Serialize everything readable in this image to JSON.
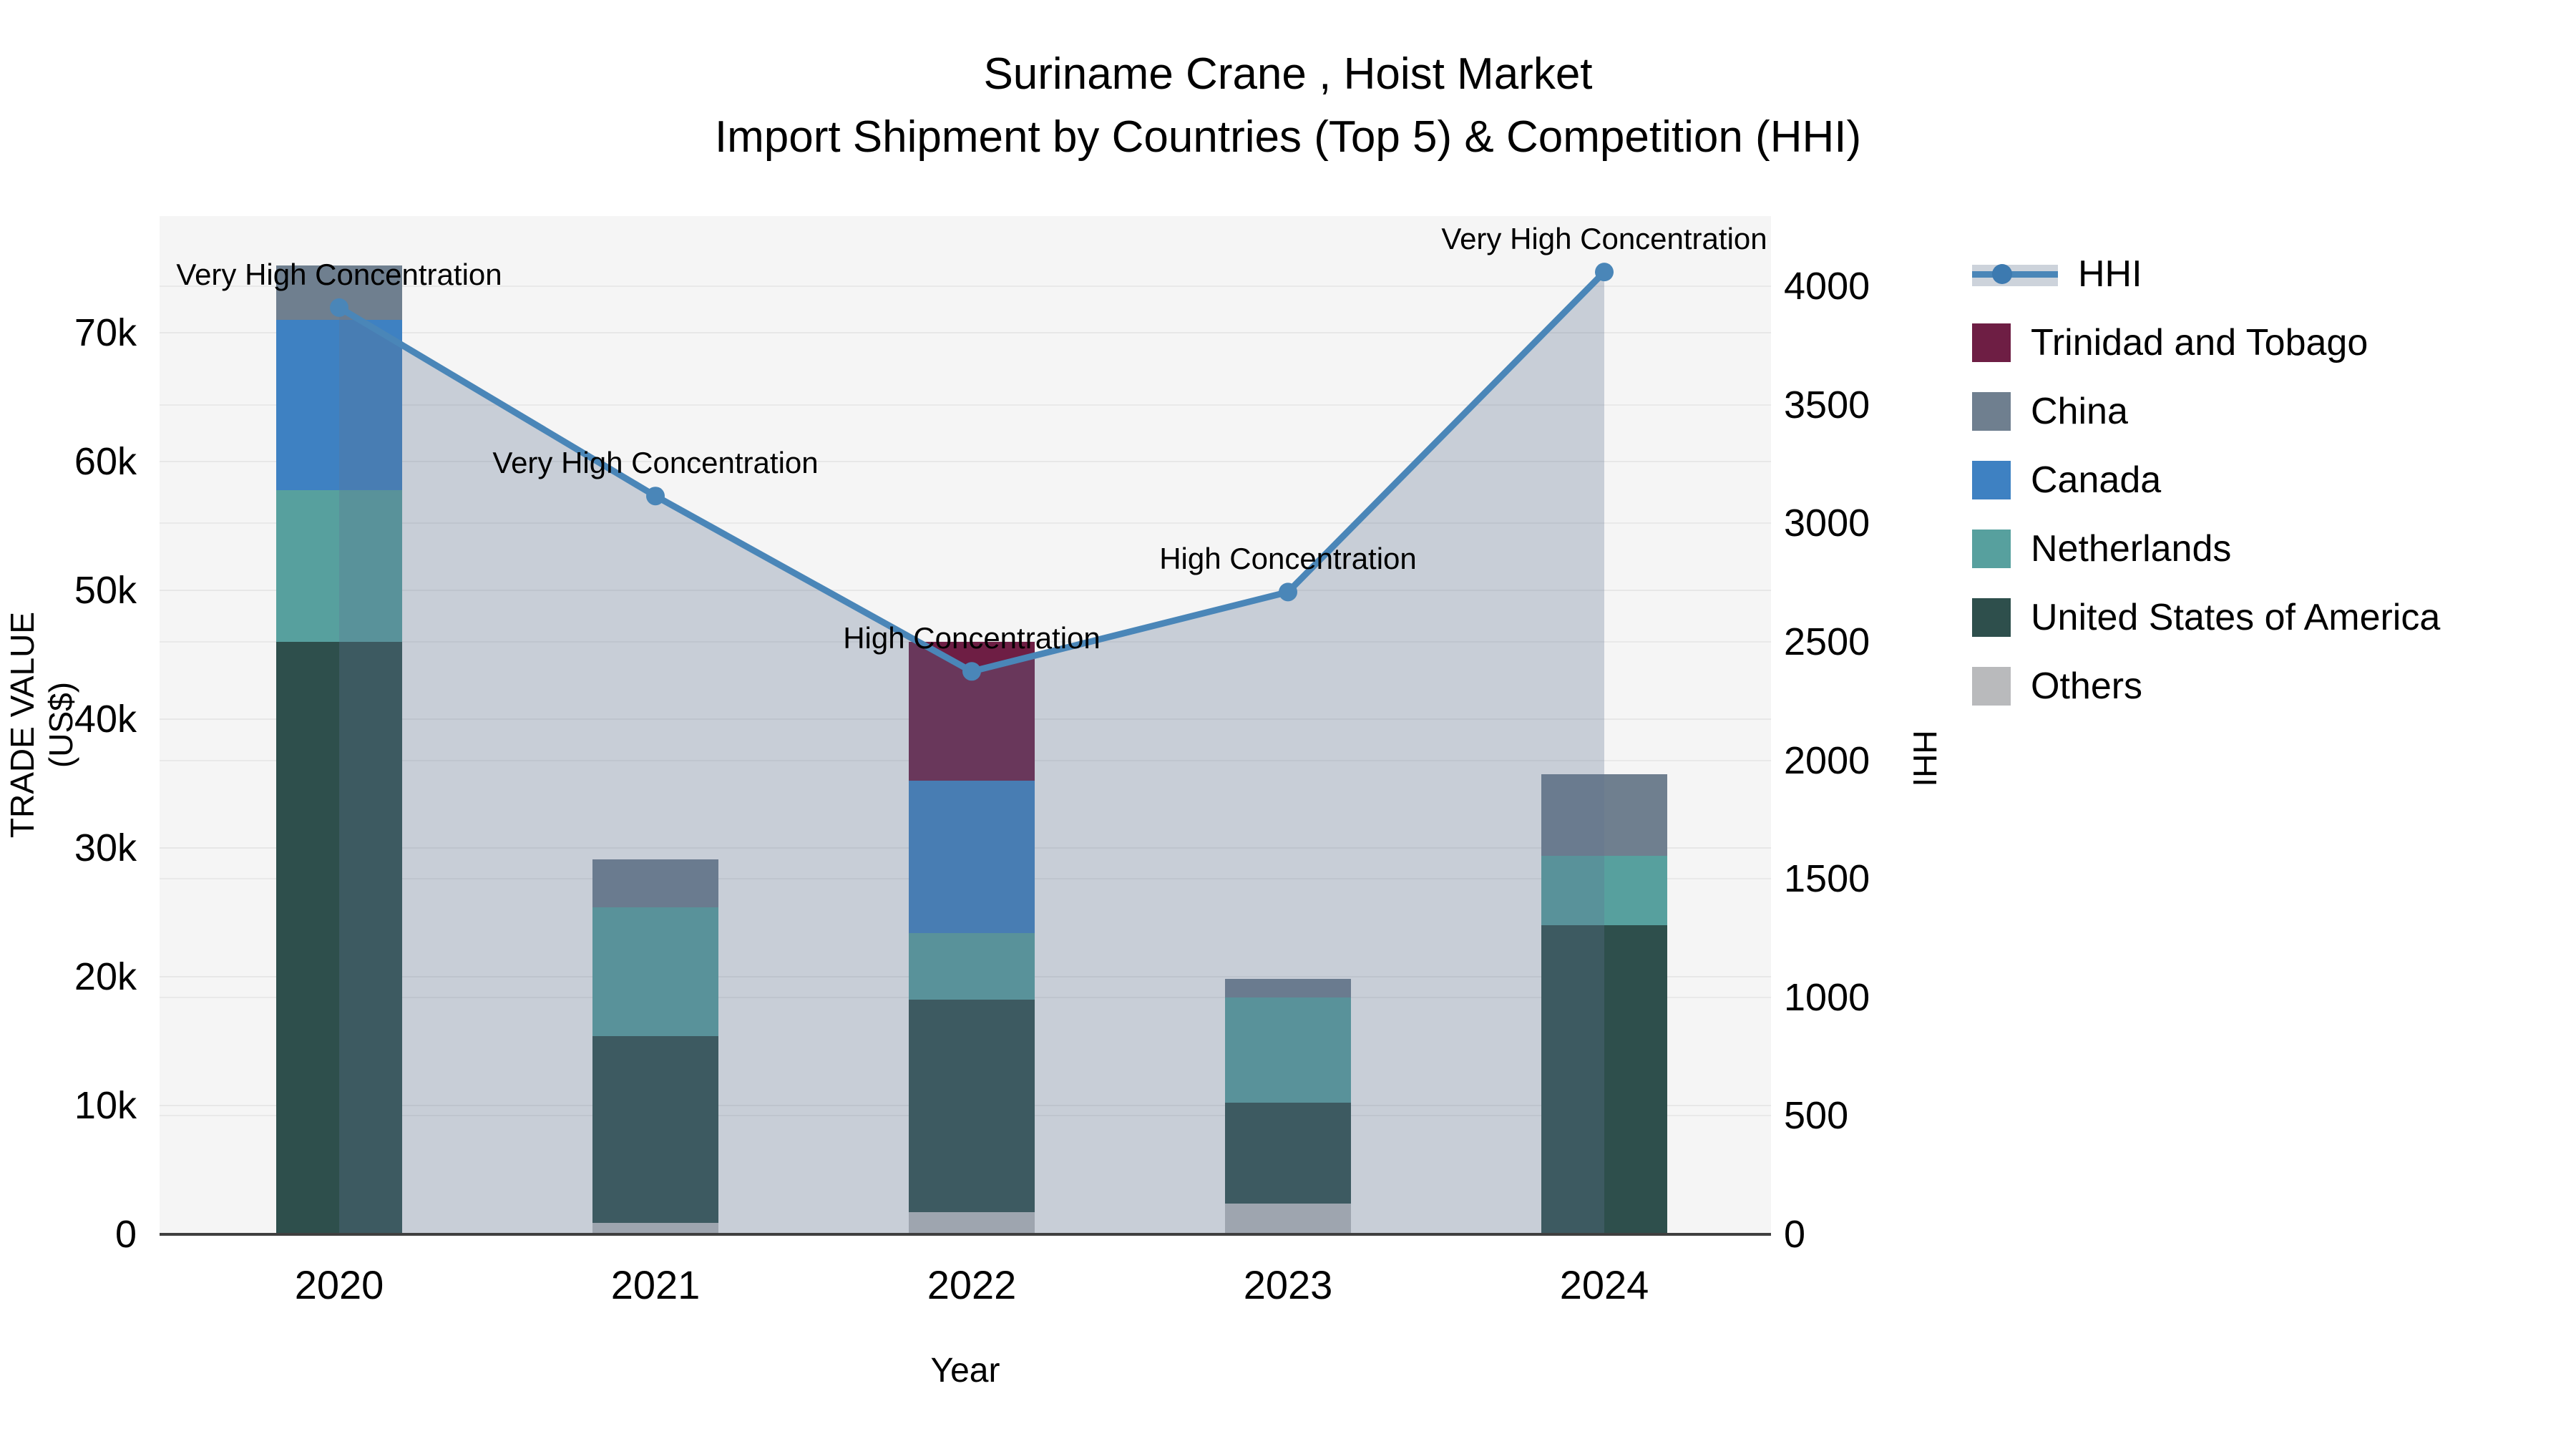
{
  "title": {
    "line1": "Suriname Crane , Hoist Market",
    "line2": "Import Shipment by Countries (Top 5) & Competition (HHI)"
  },
  "axes": {
    "left": {
      "title": "TRADE VALUE (US$)",
      "ticks": [
        {
          "label": "0",
          "value": 0
        },
        {
          "label": "10k",
          "value": 10000
        },
        {
          "label": "20k",
          "value": 20000
        },
        {
          "label": "30k",
          "value": 30000
        },
        {
          "label": "40k",
          "value": 40000
        },
        {
          "label": "50k",
          "value": 50000
        },
        {
          "label": "60k",
          "value": 60000
        },
        {
          "label": "70k",
          "value": 70000
        }
      ]
    },
    "right": {
      "title": "HHI",
      "ticks": [
        {
          "label": "0",
          "value": 0
        },
        {
          "label": "500",
          "value": 500
        },
        {
          "label": "1000",
          "value": 1000
        },
        {
          "label": "1500",
          "value": 1500
        },
        {
          "label": "2000",
          "value": 2000
        },
        {
          "label": "2500",
          "value": 2500
        },
        {
          "label": "3000",
          "value": 3000
        },
        {
          "label": "3500",
          "value": 3500
        },
        {
          "label": "4000",
          "value": 4000
        }
      ]
    },
    "x": {
      "title": "Year",
      "labels": [
        "2020",
        "2021",
        "2022",
        "2023",
        "2024"
      ]
    }
  },
  "legend": {
    "items": [
      {
        "label": "HHI",
        "type": "line",
        "color": "#4a86b8"
      },
      {
        "label": "Trinidad and Tobago",
        "type": "square",
        "color": "#6e1e44"
      },
      {
        "label": "China",
        "type": "square",
        "color": "#6f7f8f"
      },
      {
        "label": "Canada",
        "type": "square",
        "color": "#3e81c2"
      },
      {
        "label": "Netherlands",
        "type": "square",
        "color": "#57a09e"
      },
      {
        "label": "United States of America",
        "type": "square",
        "color": "#2e4f4c"
      },
      {
        "label": "Others",
        "type": "square",
        "color": "#b9babc"
      }
    ]
  },
  "chart_data": {
    "type": "bar",
    "subtype": "stacked-bars-with-line-overlay",
    "title": "Suriname Crane , Hoist Market Import Shipment by Countries (Top 5) & Competition (HHI)",
    "xlabel": "Year",
    "ylabel_left": "TRADE VALUE (US$)",
    "ylabel_right": "HHI",
    "categories": [
      "2020",
      "2021",
      "2022",
      "2023",
      "2024"
    ],
    "left_axis_range": [
      0,
      79050
    ],
    "right_axis_range": [
      0,
      4296
    ],
    "grid": true,
    "legend_position": "right",
    "series": [
      {
        "name": "Others",
        "color": "#b9babc",
        "values": [
          0,
          900,
          1700,
          2400,
          0
        ]
      },
      {
        "name": "United States of America",
        "color": "#2e4f4c",
        "values": [
          46000,
          14500,
          16500,
          7800,
          24000
        ]
      },
      {
        "name": "Netherlands",
        "color": "#57a09e",
        "values": [
          11800,
          10000,
          5200,
          8200,
          5400
        ]
      },
      {
        "name": "Canada",
        "color": "#3e81c2",
        "values": [
          13200,
          0,
          11800,
          0,
          0
        ]
      },
      {
        "name": "China",
        "color": "#6f7f8f",
        "values": [
          4200,
          3700,
          0,
          1450,
          6300
        ]
      },
      {
        "name": "Trinidad and Tobago",
        "color": "#6e1e44",
        "values": [
          0,
          0,
          10800,
          0,
          0
        ]
      }
    ],
    "bar_totals": [
      75200,
      29100,
      46000,
      19850,
      35700
    ],
    "hhi_line": {
      "name": "HHI",
      "axis": "right",
      "color": "#4a86b8",
      "area_fill": "rgba(95,115,145,0.30)",
      "values": [
        3910,
        3115,
        2375,
        2710,
        4060
      ]
    },
    "annotations": [
      {
        "year": "2020",
        "text": "Very High Concentration"
      },
      {
        "year": "2021",
        "text": "Very High Concentration"
      },
      {
        "year": "2022",
        "text": "High Concentration"
      },
      {
        "year": "2023",
        "text": "High Concentration"
      },
      {
        "year": "2024",
        "text": "Very High Concentration"
      }
    ]
  },
  "colors": {
    "plot_bg": "#f5f5f5",
    "page_bg": "#ffffff",
    "grid": "#e7e7e7",
    "axis_line": "#3f3f3f",
    "text": "#000000"
  }
}
